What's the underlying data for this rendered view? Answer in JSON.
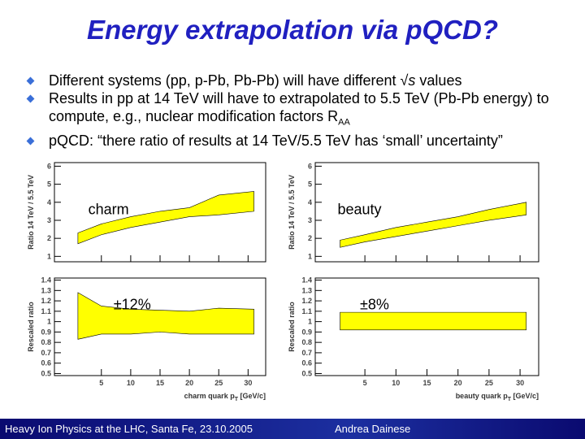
{
  "title": "Energy extrapolation via pQCD?",
  "bullets": [
    [
      "Different systems (pp, p-Pb, Pb-Pb) will have different ",
      "√",
      "s",
      " values"
    ],
    [
      "Results in pp at 14 TeV will have to extrapolated to 5.5 TeV (Pb-Pb energy) to compute, e.g., nuclear modification factors R",
      "AA"
    ],
    [
      "p",
      "QCD: “there ratio of results at 14 TeV/5.5 TeV has ‘small’ uncertainty”"
    ]
  ],
  "chart_data": [
    {
      "type": "band",
      "label": "charm",
      "ylabel": "Ratio 14 TeV / 5.5 TeV",
      "color": "#ffff00",
      "x": [
        1,
        5,
        10,
        15,
        20,
        25,
        31
      ],
      "upper": [
        2.3,
        2.8,
        3.2,
        3.5,
        3.7,
        4.4,
        4.6
      ],
      "lower": [
        1.7,
        2.2,
        2.6,
        2.9,
        3.2,
        3.3,
        3.5
      ],
      "xlim": [
        -3,
        33
      ],
      "ylim": [
        0.7,
        6.2
      ],
      "xticks": [
        5,
        10,
        15,
        20,
        25,
        30
      ],
      "yticks": [
        1,
        2,
        3,
        4,
        5,
        6
      ],
      "xtick_labels": false
    },
    {
      "type": "band",
      "label": "beauty",
      "ylabel": "Ratio 14 TeV / 5.5 TeV",
      "color": "#ffff00",
      "x": [
        1,
        5,
        10,
        15,
        20,
        25,
        31
      ],
      "upper": [
        1.9,
        2.2,
        2.6,
        2.9,
        3.2,
        3.6,
        4.0
      ],
      "lower": [
        1.5,
        1.8,
        2.1,
        2.4,
        2.7,
        3.0,
        3.3
      ],
      "xlim": [
        -3,
        33
      ],
      "ylim": [
        0.7,
        6.2
      ],
      "xticks": [
        5,
        10,
        15,
        20,
        25,
        30
      ],
      "yticks": [
        1,
        2,
        3,
        4,
        5,
        6
      ],
      "xtick_labels": false
    },
    {
      "type": "band",
      "label": "±12%",
      "ylabel": "Rescaled ratio",
      "xlabel": [
        "charm quark p",
        "T",
        " [GeV/c]"
      ],
      "color": "#ffff00",
      "x": [
        1,
        5,
        10,
        15,
        20,
        25,
        31
      ],
      "upper": [
        1.28,
        1.15,
        1.12,
        1.11,
        1.1,
        1.13,
        1.12
      ],
      "lower": [
        0.83,
        0.88,
        0.88,
        0.9,
        0.88,
        0.88,
        0.88
      ],
      "xlim": [
        -3,
        33
      ],
      "ylim": [
        0.48,
        1.42
      ],
      "xticks": [
        5,
        10,
        15,
        20,
        25,
        30
      ],
      "yticks": [
        0.5,
        0.6,
        0.7,
        0.8,
        0.9,
        1,
        1.1,
        1.2,
        1.3,
        1.4
      ],
      "xtick_labels": true
    },
    {
      "type": "band",
      "label": "±8%",
      "ylabel": "Rescaled ratio",
      "xlabel": [
        "beauty quark p",
        "T",
        " [GeV/c]"
      ],
      "color": "#ffff00",
      "x": [
        1,
        5,
        10,
        15,
        20,
        25,
        31
      ],
      "upper": [
        1.09,
        1.09,
        1.09,
        1.09,
        1.09,
        1.09,
        1.09
      ],
      "lower": [
        0.92,
        0.92,
        0.92,
        0.92,
        0.92,
        0.92,
        0.92
      ],
      "xlim": [
        -3,
        33
      ],
      "ylim": [
        0.48,
        1.42
      ],
      "xticks": [
        5,
        10,
        15,
        20,
        25,
        30
      ],
      "yticks": [
        0.5,
        0.6,
        0.7,
        0.8,
        0.9,
        1,
        1.1,
        1.2,
        1.3,
        1.4
      ],
      "xtick_labels": true
    }
  ],
  "footer": {
    "left": "Heavy Ion Physics at the LHC, Santa Fe, 23.10.2005",
    "right": "Andrea Dainese"
  }
}
